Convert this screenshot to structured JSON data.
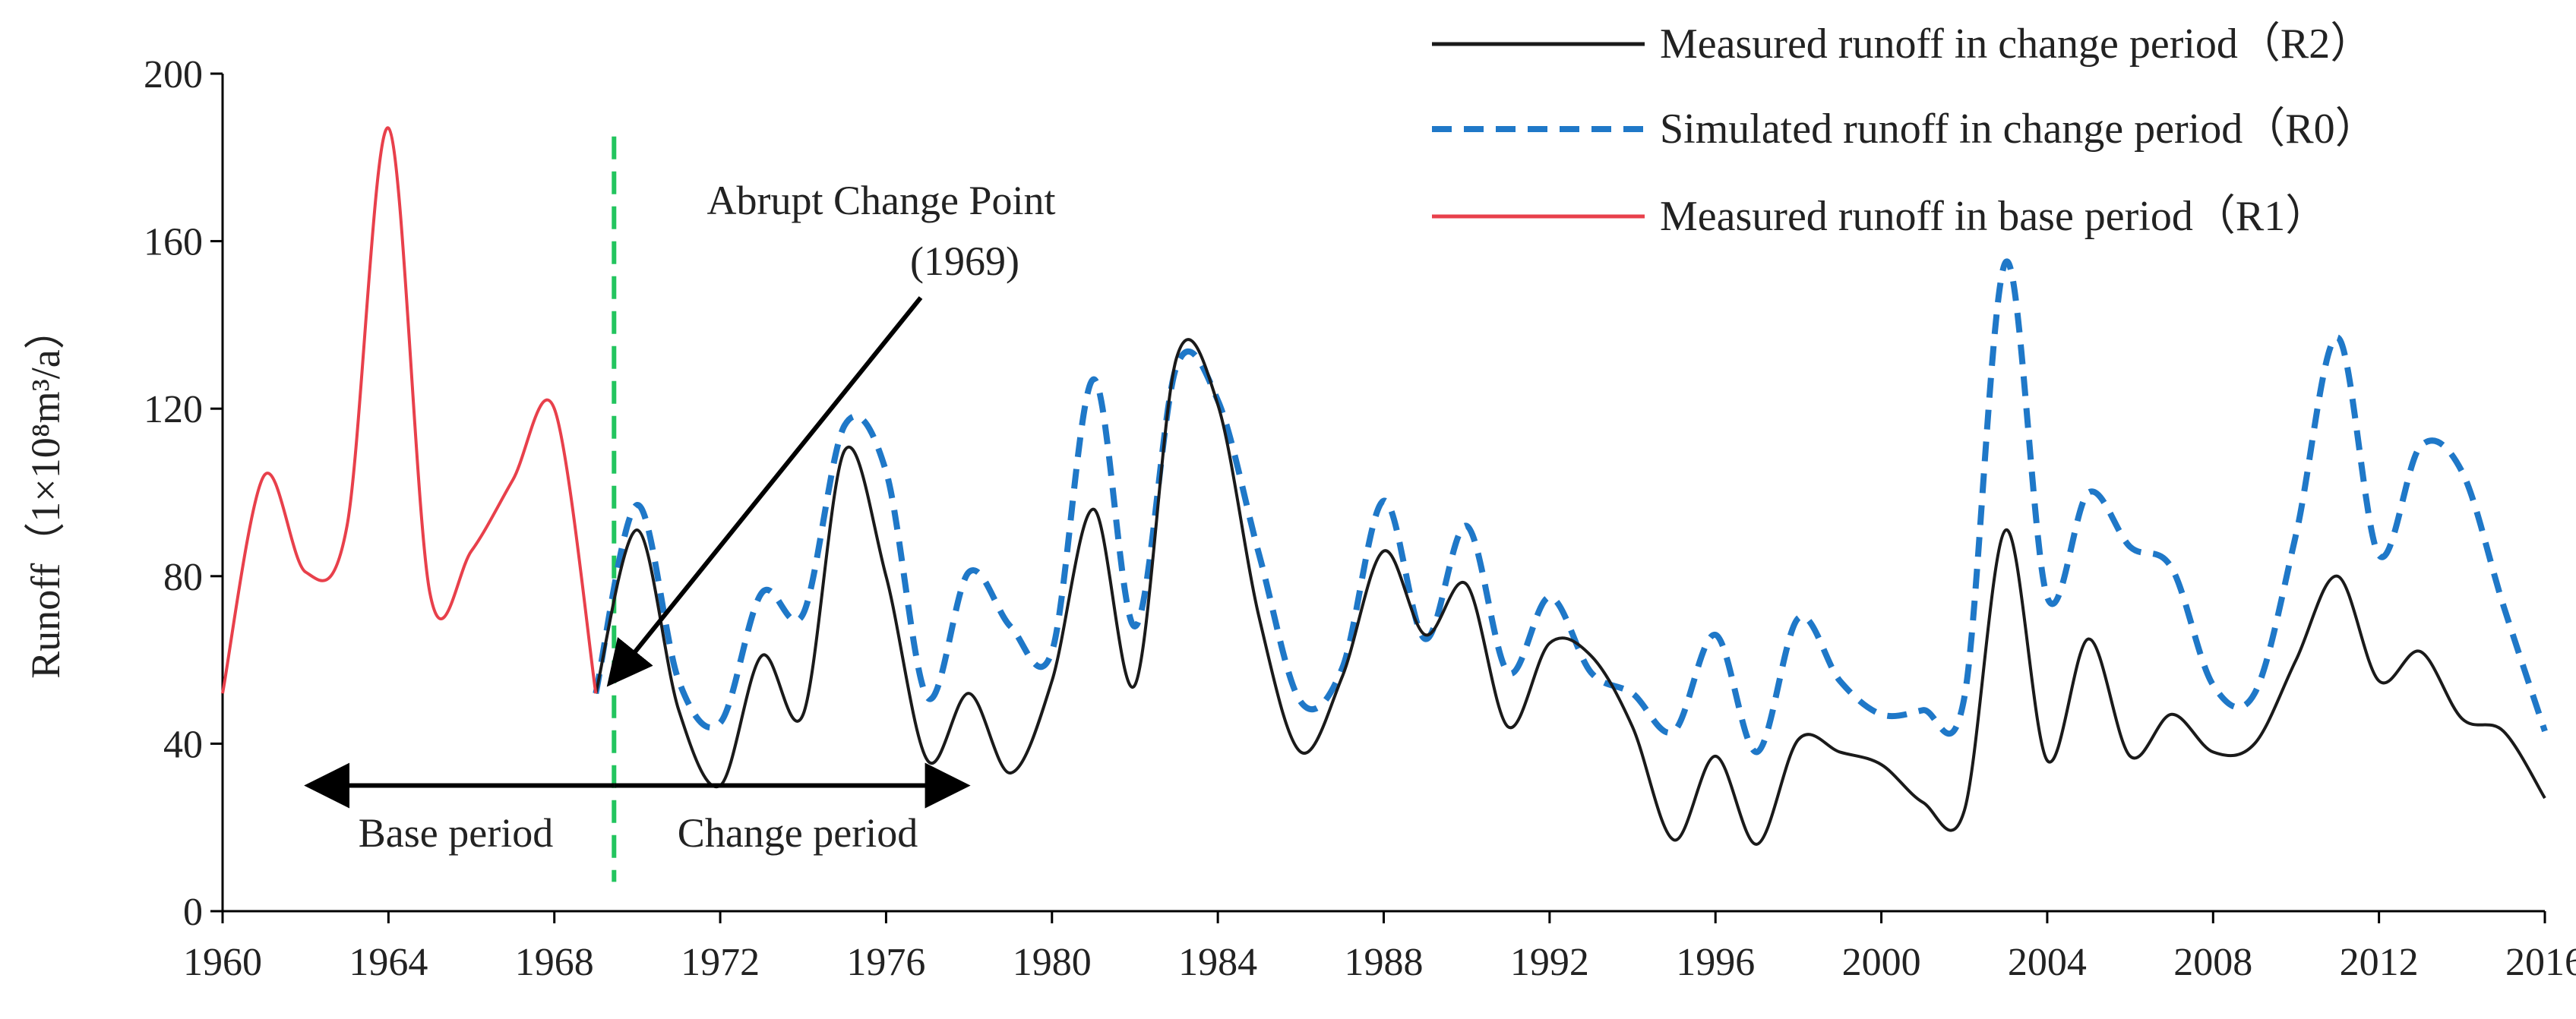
{
  "chart_data": {
    "type": "line",
    "title": "",
    "xlabel": "",
    "ylabel": "Runoff（1×10⁸m³/a）",
    "xlim": [
      1960,
      2016
    ],
    "ylim": [
      0,
      200
    ],
    "x_ticks": [
      "1960",
      "1964",
      "1968",
      "1972",
      "1976",
      "1980",
      "1984",
      "1988",
      "1992",
      "1996",
      "2000",
      "2004",
      "2008",
      "2012",
      "2016"
    ],
    "y_ticks": [
      "0",
      "40",
      "80",
      "120",
      "160",
      "200"
    ],
    "grid": false,
    "legend_position": "top-right",
    "series": [
      {
        "key": "R2",
        "name": "Measured runoff in change period（R2）",
        "color": "#1a1a1a",
        "style": "solid",
        "x": [
          1969,
          1970,
          1971,
          1972,
          1973,
          1974,
          1975,
          1976,
          1977,
          1978,
          1979,
          1980,
          1981,
          1982,
          1983,
          1984,
          1985,
          1986,
          1987,
          1988,
          1989,
          1990,
          1991,
          1992,
          1993,
          1994,
          1995,
          1996,
          1997,
          1998,
          1999,
          2000,
          2001,
          2002,
          2003,
          2004,
          2005,
          2006,
          2007,
          2008,
          2009,
          2010,
          2011,
          2012,
          2013,
          2014,
          2015,
          2016
        ],
        "values": [
          52,
          91,
          48,
          30,
          61,
          47,
          110,
          80,
          36,
          52,
          33,
          55,
          96,
          54,
          132,
          121,
          70,
          38,
          56,
          86,
          66,
          78,
          44,
          64,
          61,
          44,
          17,
          37,
          16,
          41,
          38,
          35,
          26,
          24,
          91,
          36,
          65,
          37,
          47,
          38,
          40,
          60,
          80,
          55,
          62,
          46,
          43,
          27
        ]
      },
      {
        "key": "R0",
        "name": "Simulated runoff in change period（R0）",
        "color": "#1f78c8",
        "style": "dashed",
        "x": [
          1969,
          1970,
          1971,
          1972,
          1973,
          1974,
          1975,
          1976,
          1977,
          1978,
          1979,
          1980,
          1981,
          1982,
          1983,
          1984,
          1985,
          1986,
          1987,
          1988,
          1989,
          1990,
          1991,
          1992,
          1993,
          1994,
          1995,
          1996,
          1997,
          1998,
          1999,
          2000,
          2001,
          2002,
          2003,
          2004,
          2005,
          2006,
          2007,
          2008,
          2009,
          2010,
          2011,
          2012,
          2013,
          2014,
          2015,
          2016
        ],
        "values": [
          52,
          97,
          55,
          45,
          76,
          71,
          116,
          105,
          51,
          81,
          68,
          62,
          127,
          68,
          130,
          122,
          85,
          50,
          58,
          98,
          65,
          92,
          57,
          75,
          57,
          52,
          43,
          66,
          38,
          70,
          55,
          47,
          48,
          51,
          155,
          75,
          100,
          87,
          82,
          54,
          52,
          90,
          137,
          85,
          111,
          105,
          73,
          43
        ]
      },
      {
        "key": "R1",
        "name": "Measured runoff in base period（R1）",
        "color": "#e8404b",
        "style": "solid",
        "x": [
          1960,
          1961,
          1962,
          1963,
          1964,
          1965,
          1966,
          1967,
          1968,
          1969
        ],
        "values": [
          52,
          104,
          81,
          92,
          187,
          76,
          86,
          103,
          120,
          52
        ]
      }
    ],
    "annotations": {
      "change_point_year": 1969,
      "change_point_value": 52,
      "change_point_label": "Abrupt Change Point",
      "change_point_year_label": "(1969)",
      "divider_color": "#22c55e",
      "base_period_label": "Base period",
      "change_period_label": "Change period",
      "period_arrow_from_year": 1962,
      "period_arrow_to_year": 1978,
      "period_arrow_value": 30
    }
  }
}
